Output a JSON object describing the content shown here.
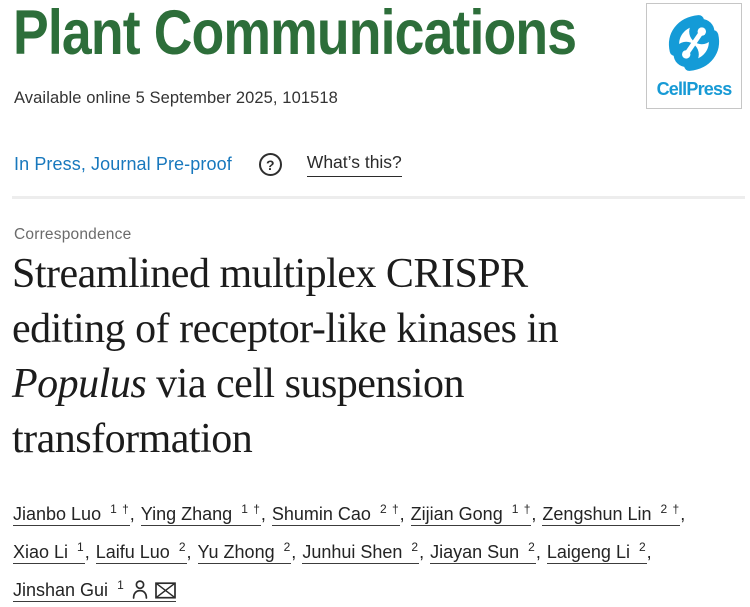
{
  "header": {
    "journal_name": "Plant Communications",
    "journal_color": "#2d6e3a",
    "publisher": {
      "wordmark": "CellPress",
      "logo_icon": "cellpress-swirl-icon",
      "blue": "#149bd7"
    }
  },
  "meta": {
    "available_online": "Available online 5 September 2025, 101518"
  },
  "status": {
    "label": "In Press, Journal Pre-proof",
    "color": "#1878bd",
    "help_question": "?",
    "help_link": "What’s this?"
  },
  "article": {
    "section_label": "Correspondence",
    "title_plain": "Streamlined multiplex CRISPR editing of receptor-like kinases in Populus via cell suspension transformation",
    "title_lines": [
      {
        "segments": [
          {
            "text": "Streamlined multiplex CRISPR"
          }
        ]
      },
      {
        "segments": [
          {
            "text": "editing of receptor-like kinases in"
          }
        ]
      },
      {
        "segments": [
          {
            "text": "Populus",
            "italic": true
          },
          {
            "text": " via cell suspension"
          }
        ]
      },
      {
        "segments": [
          {
            "text": "transformation"
          }
        ]
      }
    ]
  },
  "authors": {
    "separator": ",",
    "lines": [
      [
        {
          "name": "Jianbo Luo",
          "sup": "1 †"
        },
        {
          "name": "Ying Zhang",
          "sup": "1 †"
        },
        {
          "name": "Shumin Cao",
          "sup": "2 †"
        },
        {
          "name": "Zijian Gong",
          "sup": "1 †"
        },
        {
          "name": "Zengshun Lin",
          "sup": "2 †"
        }
      ],
      [
        {
          "name": "Xiao Li",
          "sup": "1"
        },
        {
          "name": "Laifu Luo",
          "sup": "2"
        },
        {
          "name": "Yu Zhong",
          "sup": "2"
        },
        {
          "name": "Junhui Shen",
          "sup": "2"
        },
        {
          "name": "Jiayan Sun",
          "sup": "2"
        },
        {
          "name": "Laigeng Li",
          "sup": "2"
        }
      ],
      [
        {
          "name": "Jinshan Gui",
          "sup": "1",
          "icons": [
            "person-icon",
            "envelope-icon"
          ]
        }
      ]
    ]
  }
}
